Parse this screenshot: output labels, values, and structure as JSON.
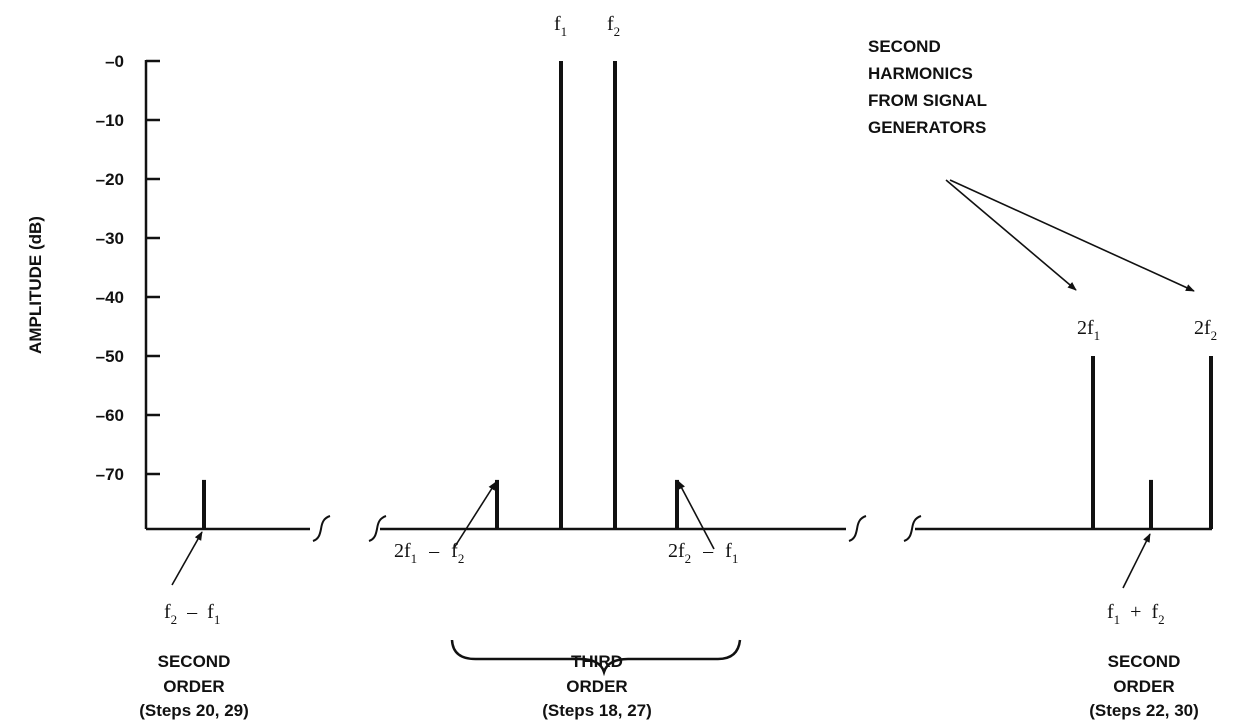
{
  "y_axis": {
    "title": "AMPLITUDE (dB)",
    "ticks": [
      "–0",
      "–10",
      "–20",
      "–30",
      "–40",
      "–50",
      "–60",
      "–70"
    ]
  },
  "spectral_lines": [
    {
      "id": "f2-minus-f1",
      "amplitude_db": -71
    },
    {
      "id": "2f1-minus-f2",
      "amplitude_db": -71
    },
    {
      "id": "f1",
      "amplitude_db": 0
    },
    {
      "id": "f2",
      "amplitude_db": 0
    },
    {
      "id": "2f2-minus-f1",
      "amplitude_db": -71
    },
    {
      "id": "2f1",
      "amplitude_db": -50
    },
    {
      "id": "f1-plus-f2",
      "amplitude_db": -71
    },
    {
      "id": "2f2",
      "amplitude_db": -50
    }
  ],
  "labels": {
    "f1": {
      "base": "f",
      "sub": "1"
    },
    "f2": {
      "base": "f",
      "sub": "2"
    },
    "h2f1": {
      "base": "2f",
      "sub": "1"
    },
    "h2f2": {
      "base": "2f",
      "sub": "2"
    },
    "diff_left": {
      "a": "f",
      "a_sub": "2",
      "op": "–",
      "b": "f",
      "b_sub": "1"
    },
    "third_left": {
      "a": "2f",
      "a_sub": "1",
      "op": "–",
      "b": "f",
      "b_sub": "2"
    },
    "third_right": {
      "a": "2f",
      "a_sub": "2",
      "op": "–",
      "b": "f",
      "b_sub": "1"
    },
    "sum_right": {
      "a": "f",
      "a_sub": "1",
      "op": "+",
      "b": "f",
      "b_sub": "2"
    }
  },
  "annotation": [
    "SECOND",
    "HARMONICS",
    "FROM SIGNAL",
    "GENERATORS"
  ],
  "groups": {
    "left": {
      "line1": "SECOND",
      "line2": "ORDER",
      "line3": "(Steps 20, 29)"
    },
    "center": {
      "line1": "THIRD",
      "line2": "ORDER",
      "line3": "(Steps 18, 27)"
    },
    "right": {
      "line1": "SECOND",
      "line2": "ORDER",
      "line3": "(Steps 22, 30)"
    }
  }
}
